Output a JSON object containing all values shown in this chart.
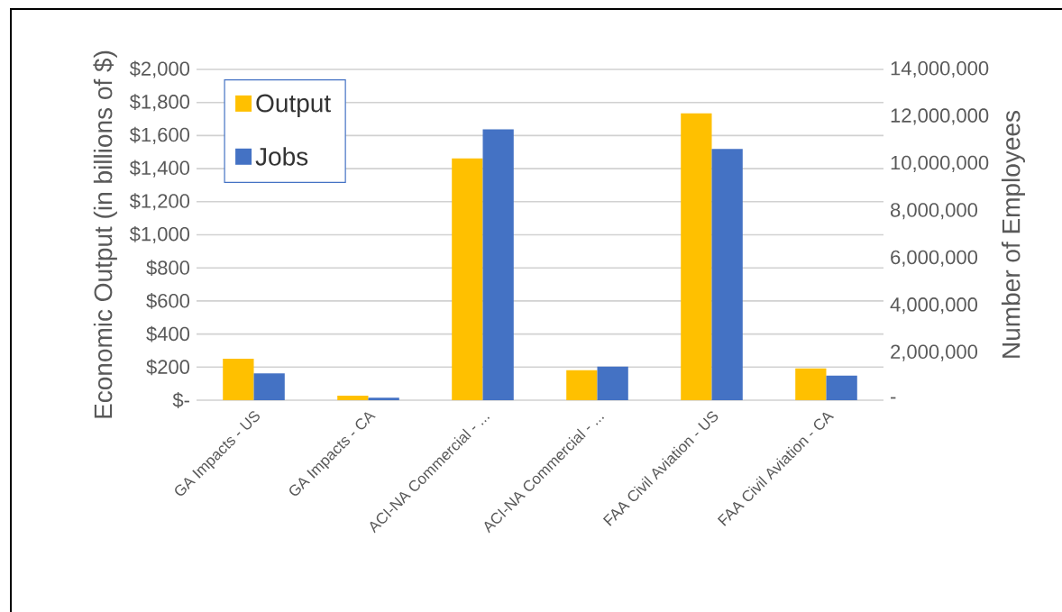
{
  "chart_data": {
    "type": "bar",
    "categories": [
      "GA Impacts - US",
      "GA Impacts - CA",
      "ACI-NA Commercial - ...",
      "ACI-NA Commercial - ...",
      "FAA Civil Aviation - US",
      "FAA Civil Aviation - CA"
    ],
    "series": [
      {
        "name": "Output",
        "color": "#ffc000",
        "values": [
          250,
          27,
          1462,
          181,
          1734,
          192
        ]
      },
      {
        "name": "Jobs",
        "color": "#4472c4",
        "axis": "y2",
        "values": [
          1130000,
          100000,
          11460000,
          1420000,
          10630000,
          1040000
        ]
      }
    ],
    "ylabel": "Economic Output (in billions of $)",
    "y2label": "Number of Employees",
    "ylim": [
      0,
      2000
    ],
    "yticks": [
      {
        "value": 0,
        "label": "$-"
      },
      {
        "value": 200,
        "label": "$200"
      },
      {
        "value": 400,
        "label": "$400"
      },
      {
        "value": 600,
        "label": "$600"
      },
      {
        "value": 800,
        "label": "$800"
      },
      {
        "value": 1000,
        "label": "$1,000"
      },
      {
        "value": 1200,
        "label": "$1,200"
      },
      {
        "value": 1400,
        "label": "$1,400"
      },
      {
        "value": 1600,
        "label": "$1,600"
      },
      {
        "value": 1800,
        "label": "$1,800"
      },
      {
        "value": 2000,
        "label": "$2,000"
      }
    ],
    "y2lim": [
      0,
      14000000
    ],
    "y2ticks": [
      {
        "value": 0,
        "label": "-"
      },
      {
        "value": 2000000,
        "label": "2,000,000"
      },
      {
        "value": 4000000,
        "label": "4,000,000"
      },
      {
        "value": 6000000,
        "label": "6,000,000"
      },
      {
        "value": 8000000,
        "label": "8,000,000"
      },
      {
        "value": 10000000,
        "label": "10,000,000"
      },
      {
        "value": 12000000,
        "label": "12,000,000"
      },
      {
        "value": 14000000,
        "label": "14,000,000"
      }
    ],
    "grid": "y",
    "legend": "top left"
  }
}
